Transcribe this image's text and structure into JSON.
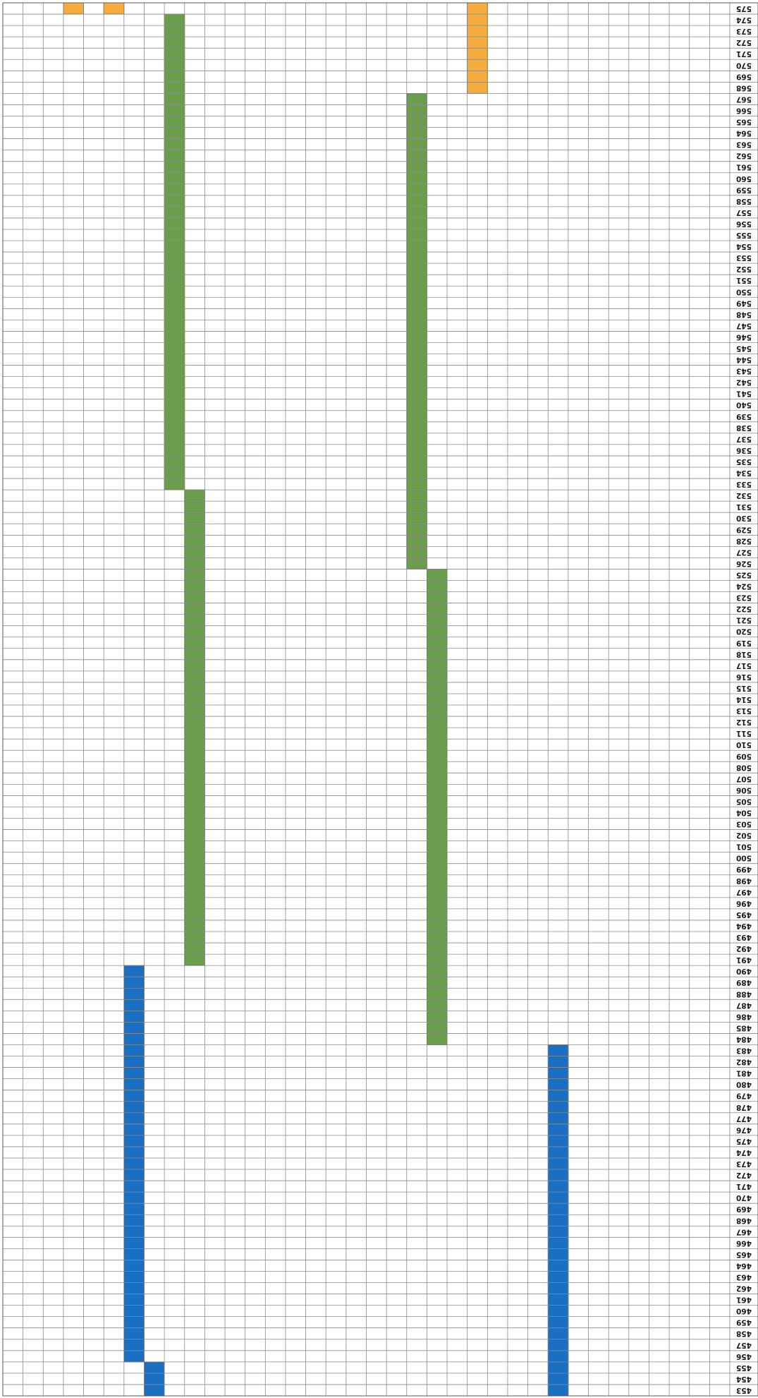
{
  "chart_data": {
    "type": "table",
    "orientation": "rotated-180",
    "rows": {
      "first": 453,
      "last": 575,
      "labels": [
        "453",
        "454",
        "455",
        "456",
        "457",
        "458",
        "459",
        "460",
        "461",
        "462",
        "463",
        "464",
        "465",
        "466",
        "467",
        "468",
        "469",
        "470",
        "471",
        "472",
        "473",
        "474",
        "475",
        "476",
        "477",
        "478",
        "479",
        "480",
        "481",
        "482",
        "483",
        "484",
        "485",
        "486",
        "487",
        "488",
        "489",
        "490",
        "491",
        "492",
        "493",
        "494",
        "495",
        "496",
        "497",
        "498",
        "499",
        "500",
        "501",
        "502",
        "503",
        "504",
        "505",
        "506",
        "507",
        "508",
        "509",
        "510",
        "511",
        "512",
        "513",
        "514",
        "515",
        "516",
        "517",
        "518",
        "519",
        "520",
        "521",
        "522",
        "523",
        "524",
        "525",
        "526",
        "527",
        "528",
        "529",
        "530",
        "531",
        "532",
        "533",
        "534",
        "535",
        "536",
        "537",
        "538",
        "539",
        "540",
        "541",
        "542",
        "543",
        "544",
        "545",
        "546",
        "547",
        "548",
        "549",
        "550",
        "551",
        "552",
        "553",
        "554",
        "555",
        "556",
        "557",
        "558",
        "559",
        "560",
        "561",
        "562",
        "563",
        "564",
        "565",
        "566",
        "567",
        "568",
        "569",
        "570",
        "571",
        "572",
        "573",
        "574",
        "575"
      ]
    },
    "columns": 36,
    "colors": {
      "blue": "#1a6fc2",
      "green": "#6a9e4c",
      "orange": "#f5ac3c"
    },
    "segments": [
      {
        "column": 8,
        "color": "blue",
        "from_row": 453,
        "to_row": 483
      },
      {
        "column": 28,
        "color": "blue",
        "from_row": 453,
        "to_row": 455
      },
      {
        "column": 29,
        "color": "blue",
        "from_row": 456,
        "to_row": 490
      },
      {
        "column": 14,
        "color": "green",
        "from_row": 484,
        "to_row": 525
      },
      {
        "column": 15,
        "color": "green",
        "from_row": 526,
        "to_row": 567
      },
      {
        "column": 26,
        "color": "green",
        "from_row": 491,
        "to_row": 532
      },
      {
        "column": 27,
        "color": "green",
        "from_row": 533,
        "to_row": 574
      },
      {
        "column": 12,
        "color": "orange",
        "from_row": 568,
        "to_row": 575
      },
      {
        "column": 30,
        "color": "orange",
        "from_row": 575,
        "to_row": 575
      },
      {
        "column": 32,
        "color": "orange",
        "from_row": 575,
        "to_row": 575
      }
    ]
  }
}
